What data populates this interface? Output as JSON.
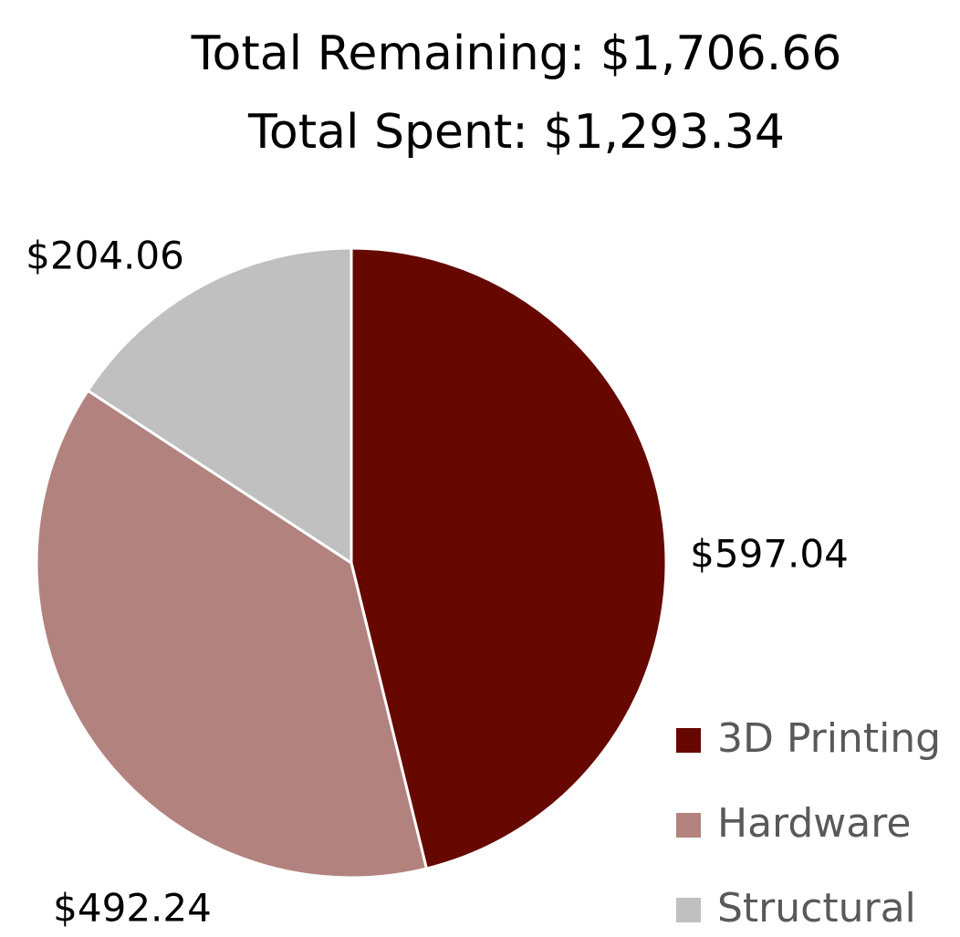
{
  "chart_data": {
    "type": "pie",
    "title": "Total Remaining: $1,706.66",
    "subtitle": "Total Spent: $1,293.34",
    "categories": [
      "3D Printing",
      "Hardware",
      "Structural"
    ],
    "values": [
      597.04,
      492.24,
      204.06
    ],
    "value_labels": [
      "$597.04",
      "$492.24",
      "$204.06"
    ],
    "colors": [
      "#660800",
      "#b2827e",
      "#c0c0c0"
    ],
    "legend": "right"
  }
}
